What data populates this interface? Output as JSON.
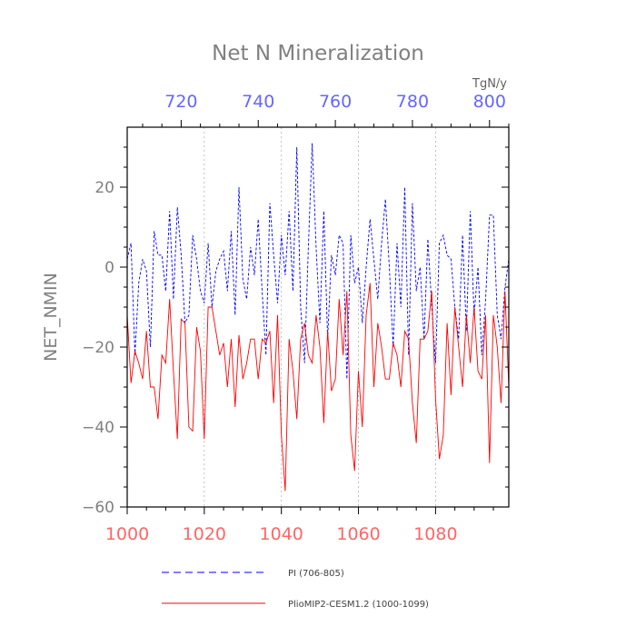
{
  "chart_data": {
    "type": "line",
    "title": "Net N Mineralization",
    "ylabel": "NET_NMIN",
    "top_axis_unit": "TgN/y",
    "ylim": [
      -60,
      35
    ],
    "yticks": [
      -60,
      -40,
      -20,
      0,
      20
    ],
    "bottom_axis": {
      "range": [
        1000,
        1099
      ],
      "ticks": [
        1000,
        1020,
        1040,
        1060,
        1080
      ],
      "color": "#ff6666"
    },
    "top_axis": {
      "range": [
        706,
        805
      ],
      "ticks": [
        720,
        740,
        760,
        780,
        800
      ],
      "color": "#6666ff"
    },
    "grid_x": [
      1020,
      1040,
      1060,
      1080
    ],
    "series": [
      {
        "name": "PI (706-805)",
        "color": "#0000ff",
        "style": "dashed",
        "axis": "top",
        "x_start": 706,
        "values": [
          2,
          6,
          -22,
          -4,
          2,
          -1,
          -20,
          9,
          3,
          3,
          -6,
          14,
          -8,
          15,
          3,
          -14,
          -12,
          8,
          2,
          -6,
          -9,
          6,
          -10,
          -1,
          2,
          4,
          -6,
          9,
          -12,
          20,
          -3,
          -8,
          5,
          -2,
          12,
          -6,
          -22,
          16,
          3,
          -9,
          8,
          -2,
          14,
          -6,
          30,
          -10,
          -24,
          5,
          31,
          5,
          -14,
          14,
          -18,
          3,
          -2,
          8,
          6,
          -28,
          8,
          -4,
          0,
          -14,
          0,
          12,
          2,
          -8,
          6,
          17,
          0,
          -20,
          6,
          -10,
          20,
          -22,
          16,
          -6,
          0,
          -18,
          7,
          -10,
          -24,
          6,
          8,
          3,
          2,
          -10,
          -18,
          8,
          -16,
          14,
          -12,
          0,
          -22,
          -8,
          13,
          13,
          -12,
          -18,
          -5,
          2
        ]
      },
      {
        "name": "PlioMIP2-CESM1.2 (1000-1099)",
        "color": "#ff0000",
        "style": "solid",
        "axis": "bottom",
        "x_start": 1000,
        "values": [
          -12,
          -29,
          -21,
          -24,
          -28,
          -16,
          -30,
          -30,
          -38,
          -22,
          -24,
          -8,
          -26,
          -43,
          -13,
          -14,
          -40,
          -41,
          -15,
          -21,
          -43,
          -10,
          -10,
          -16,
          -22,
          -19,
          -30,
          -18,
          -35,
          -17,
          -28,
          -24,
          -18,
          -18,
          -28,
          -18,
          -19,
          -16,
          -34,
          -12,
          -42,
          -56,
          -18,
          -26,
          -38,
          -18,
          -14,
          -22,
          -24,
          -12,
          -20,
          -39,
          -16,
          -31,
          -28,
          -8,
          -22,
          -6,
          -42,
          -51,
          -26,
          -40,
          -12,
          -4,
          -30,
          -14,
          -20,
          -28,
          -28,
          -19,
          -22,
          -30,
          -16,
          -18,
          -34,
          -44,
          -18,
          -18,
          -16,
          -6,
          -33,
          -48,
          -42,
          -14,
          -32,
          -10,
          -20,
          -30,
          -12,
          -24,
          -10,
          -26,
          -28,
          -12,
          -49,
          -12,
          -20,
          -34,
          -6,
          -30
        ]
      }
    ],
    "legend": {
      "placement": "bottom",
      "entries": [
        "PI (706-805)",
        "PlioMIP2-CESM1.2 (1000-1099)"
      ]
    }
  }
}
